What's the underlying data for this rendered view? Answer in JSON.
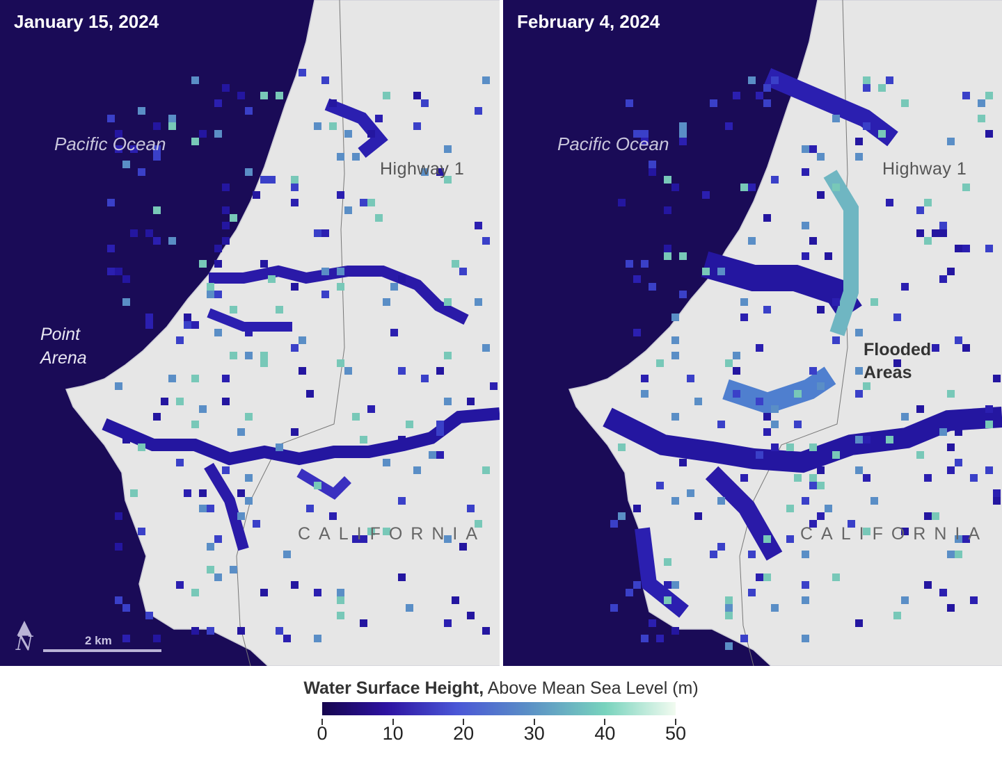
{
  "panels": [
    {
      "date": "January 15, 2024",
      "ocean_label": "Pacific Ocean",
      "highway_label": "Highway 1",
      "region_label": "CALIFORNIA",
      "point_label_line1": "Point",
      "point_label_line2": "Arena"
    },
    {
      "date": "February 4, 2024",
      "ocean_label": "Pacific Ocean",
      "highway_label": "Highway 1",
      "region_label": "CALIFORNIA",
      "flood_label_line1": "Flooded",
      "flood_label_line2": "Areas"
    }
  ],
  "scale_bar": {
    "label": "2 km"
  },
  "north_arrow": {
    "icon": "north-arrow-icon",
    "letter": "N"
  },
  "legend": {
    "title_bold": "Water Surface Height,",
    "title_rest": " Above Mean Sea Level (m)",
    "ticks": [
      "0",
      "10",
      "20",
      "30",
      "40",
      "50"
    ],
    "range": [
      0,
      50
    ],
    "colors": [
      "#16064e",
      "#2d12a0",
      "#4a56d6",
      "#5a8ec6",
      "#78d3bd",
      "#f2fbf0"
    ]
  },
  "colors": {
    "ocean": "#1a0b57",
    "land": "#e6e6e6"
  }
}
